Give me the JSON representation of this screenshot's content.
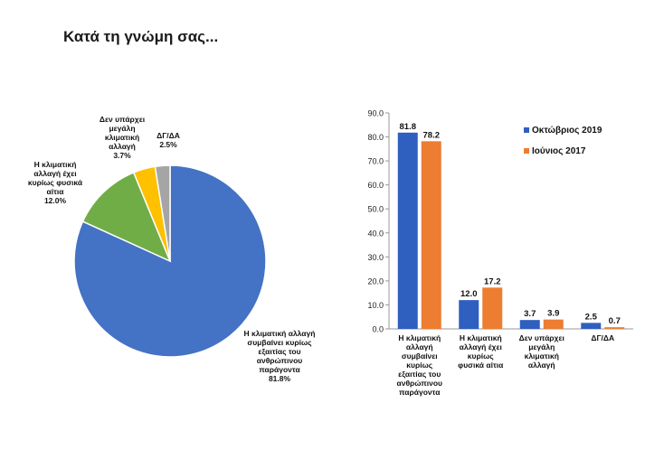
{
  "title": "Κατά τη γνώμη σας...",
  "colors": {
    "pie": [
      "#4472c4",
      "#70ad47",
      "#ffc000",
      "#a5a5a5"
    ],
    "oct": "#2f5fbf",
    "jun": "#ed7d31"
  },
  "chart_data": [
    {
      "type": "pie",
      "slices": [
        {
          "label": "Η κλιματική αλλαγή συμβαίνει κυρίως εξαιτίας του ανθρώπινου παράγοντα",
          "value": 81.8,
          "pct_label": "81.8%"
        },
        {
          "label": "Η κλιματική αλλαγή έχει κυρίως φυσικά αίτια",
          "value": 12.0,
          "pct_label": "12.0%"
        },
        {
          "label": "Δεν υπάρχει μεγάλη κλιματική αλλαγή",
          "value": 3.7,
          "pct_label": "3.7%"
        },
        {
          "label": "ΔΓ/ΔΑ",
          "value": 2.5,
          "pct_label": "2.5%"
        }
      ]
    },
    {
      "type": "bar",
      "categories": [
        "Η κλιματική αλλαγή συμβαίνει κυρίως εξαιτίας του ανθρώπινου παράγοντα",
        "Η κλιματική αλλαγή έχει κυρίως φυσικά αίτια",
        "Δεν υπάρχει μεγάλη κλιματική αλλαγή",
        "ΔΓ/ΔΑ"
      ],
      "series": [
        {
          "name": "Οκτώβριος 2019",
          "values": [
            81.8,
            12.0,
            3.7,
            2.5
          ]
        },
        {
          "name": "Ιούνιος 2017",
          "values": [
            78.2,
            17.2,
            3.9,
            0.7
          ]
        }
      ],
      "ylim": [
        0,
        90
      ],
      "yticks": [
        "0.0",
        "10.0",
        "20.0",
        "30.0",
        "40.0",
        "50.0",
        "60.0",
        "70.0",
        "80.0",
        "90.0"
      ],
      "grid": false,
      "legend": "top-right"
    }
  ]
}
